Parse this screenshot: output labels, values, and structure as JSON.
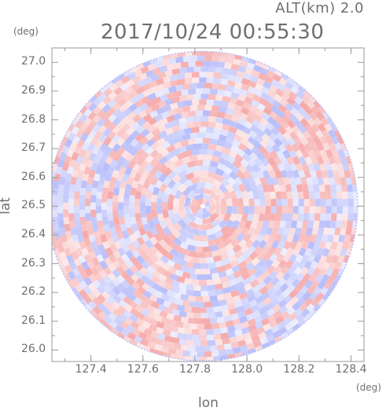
{
  "header": {
    "altitude_label": "ALT(km) 2.0",
    "timestamp": "2017/10/24 00:55:30"
  },
  "chart_data": {
    "type": "heatmap",
    "title": "2017/10/24 00:55:30",
    "xlabel": "lon",
    "ylabel": "lat",
    "x_unit": "(deg)",
    "y_unit": "(deg)",
    "xlim": [
      127.25,
      128.45
    ],
    "ylim": [
      25.96,
      27.05
    ],
    "x_ticks": [
      "127.4",
      "127.6",
      "127.8",
      "128.0",
      "128.2",
      "128.4"
    ],
    "y_ticks": [
      "27.0",
      "26.9",
      "26.8",
      "26.7",
      "26.6",
      "26.5",
      "26.4",
      "26.3",
      "26.2",
      "26.1",
      "26.0"
    ],
    "center": {
      "lon": 127.83,
      "lat": 26.5
    },
    "range_km": 60,
    "colors": {
      "positive": "#f6aaaa",
      "negative": "#b7bdfa",
      "frame": "#9a9a9a"
    },
    "grid": false,
    "legend": "none"
  }
}
